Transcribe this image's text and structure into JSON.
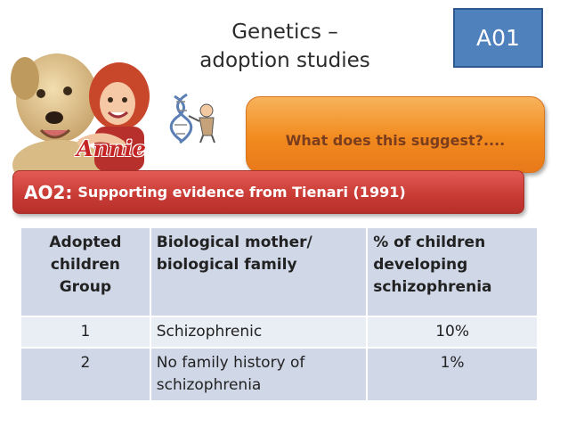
{
  "slide": {
    "title_line1": "Genetics –",
    "title_line2": "adoption studies",
    "badge": "A01",
    "image": {
      "logo_text": "Annie"
    },
    "callout": "What does this suggest?....",
    "banner": {
      "label": "AO2:",
      "text": "Supporting evidence from Tienari (1991)"
    },
    "table": {
      "headers": [
        "Adopted children Group",
        "Biological mother/ biological family",
        "% of children developing schizophrenia"
      ],
      "rows": [
        [
          "1",
          "Schizophrenic",
          "10%"
        ],
        [
          "2",
          "No family history of schizophrenia",
          "1%"
        ]
      ]
    },
    "colors": {
      "badge": "#4f81bd",
      "callout": "#f28a1e",
      "banner": "#c83a34",
      "table_dark": "#d0d8e8",
      "table_light": "#e9edf4"
    }
  }
}
